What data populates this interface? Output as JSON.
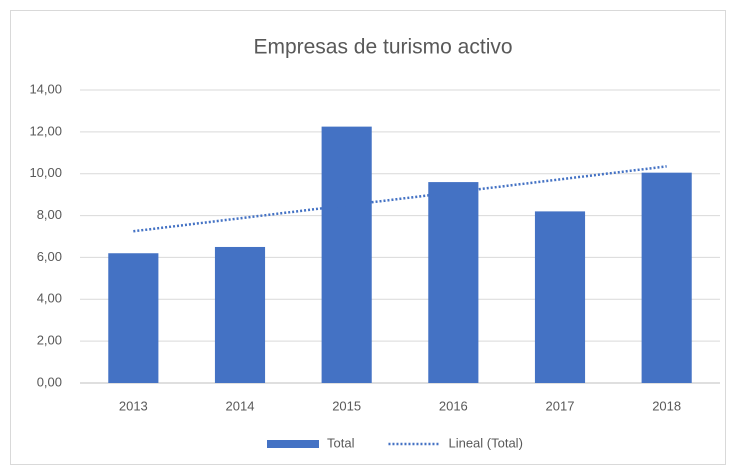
{
  "chart_data": {
    "type": "bar",
    "title": "Empresas de turismo activo",
    "categories": [
      "2013",
      "2014",
      "2015",
      "2016",
      "2017",
      "2018"
    ],
    "series": [
      {
        "name": "Total",
        "color": "#4472c4",
        "type": "bar",
        "values": [
          6.2,
          6.5,
          12.25,
          9.6,
          8.2,
          10.05
        ]
      },
      {
        "name": "Lineal (Total)",
        "color": "#4472c4",
        "type": "trend",
        "values": [
          7.25,
          7.87,
          8.49,
          9.11,
          9.73,
          10.35
        ]
      }
    ],
    "ylim": [
      0,
      14
    ],
    "yticks": [
      {
        "value": 0,
        "label": "0,00"
      },
      {
        "value": 2,
        "label": "2,00"
      },
      {
        "value": 4,
        "label": "4,00"
      },
      {
        "value": 6,
        "label": "6,00"
      },
      {
        "value": 8,
        "label": "8,00"
      },
      {
        "value": 10,
        "label": "10,00"
      },
      {
        "value": 12,
        "label": "12,00"
      },
      {
        "value": 14,
        "label": "14,00"
      }
    ],
    "grid": true,
    "legend": "bottom"
  }
}
